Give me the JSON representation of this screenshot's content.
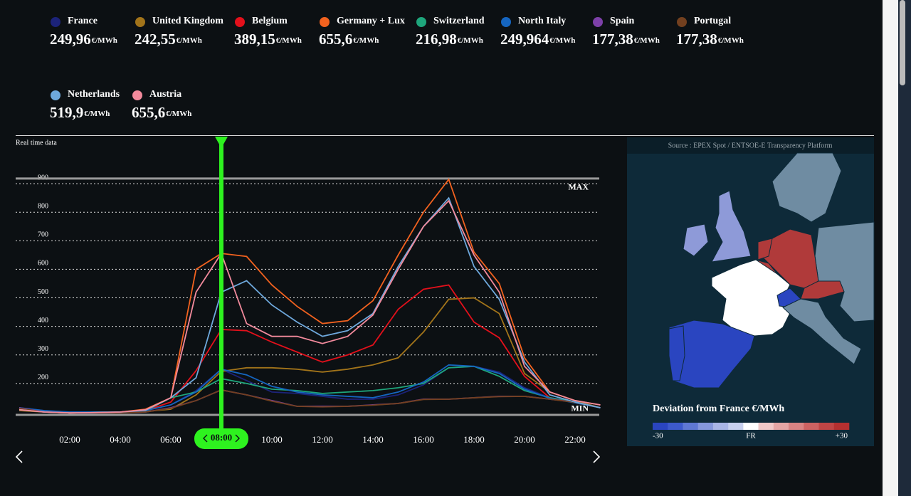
{
  "chart_data": {
    "type": "line",
    "subtitle": "Real time data",
    "unit": "€/MWh",
    "categories": [
      null,
      null,
      "02:00",
      null,
      "04:00",
      null,
      "06:00",
      null,
      "08:00",
      null,
      "10:00",
      null,
      "12:00",
      null,
      "14:00",
      null,
      "16:00",
      null,
      "18:00",
      null,
      "20:00",
      null,
      "22:00",
      null
    ],
    "selected": 8,
    "ylim": [
      80,
      1000
    ],
    "yticks": [
      200,
      300,
      400,
      500,
      600,
      700,
      800,
      900
    ],
    "grid": true,
    "annotations": [
      {
        "label": "MAX",
        "value": 918
      },
      {
        "label": "MIN",
        "value": 90
      }
    ],
    "series": [
      {
        "name": "France",
        "color": "#1c237a",
        "legend_value": "249,96",
        "values": [
          115,
          105,
          100,
          100,
          100,
          105,
          125,
          175,
          249.96,
          210,
          170,
          165,
          155,
          145,
          145,
          160,
          195,
          255,
          260,
          240,
          185,
          150,
          135,
          115
        ]
      },
      {
        "name": "United Kingdom",
        "color": "#a2741a",
        "legend_value": "242,55",
        "values": [
          105,
          100,
          97,
          98,
          100,
          102,
          110,
          160,
          242.55,
          255,
          255,
          250,
          240,
          250,
          265,
          290,
          380,
          495,
          500,
          445,
          235,
          170,
          140,
          115
        ]
      },
      {
        "name": "Belgium",
        "color": "#e3101b",
        "legend_value": "389,15",
        "values": [
          110,
          100,
          97,
          98,
          100,
          105,
          135,
          245,
          389.15,
          385,
          345,
          310,
          275,
          300,
          335,
          460,
          530,
          545,
          415,
          360,
          225,
          150,
          135,
          115
        ]
      },
      {
        "name": "Germany + Lux",
        "color": "#f2621f",
        "legend_value": "655,6",
        "values": [
          110,
          100,
          97,
          100,
          100,
          110,
          150,
          600,
          655.6,
          645,
          545,
          470,
          410,
          420,
          490,
          650,
          800,
          915,
          660,
          550,
          290,
          170,
          140,
          125
        ]
      },
      {
        "name": "Switzerland",
        "color": "#1ea67c",
        "legend_value": "216,98",
        "values": [
          110,
          102,
          98,
          100,
          100,
          104,
          150,
          170,
          216.98,
          200,
          180,
          175,
          165,
          170,
          175,
          185,
          200,
          255,
          260,
          225,
          175,
          150,
          135,
          115
        ]
      },
      {
        "name": "North Italy",
        "color": "#1565c0",
        "legend_value": "249,964",
        "values": [
          115,
          105,
          100,
          100,
          100,
          105,
          125,
          170,
          249.964,
          230,
          190,
          170,
          160,
          155,
          150,
          170,
          205,
          265,
          260,
          235,
          180,
          148,
          132,
          115
        ]
      },
      {
        "name": "Spain",
        "color": "#7d40a8",
        "legend_value": "177,38",
        "values": [
          115,
          100,
          97,
          97,
          97,
          100,
          115,
          140,
          177.38,
          160,
          140,
          120,
          120,
          120,
          125,
          130,
          145,
          145,
          150,
          155,
          155,
          145,
          135,
          115
        ]
      },
      {
        "name": "Portugal",
        "color": "#73401f",
        "legend_value": "177,38",
        "values": [
          113,
          100,
          97,
          97,
          97,
          100,
          113,
          140,
          177.38,
          160,
          138,
          120,
          118,
          120,
          124,
          130,
          144,
          145,
          150,
          154,
          155,
          145,
          134,
          115
        ]
      },
      {
        "name": "Netherlands",
        "color": "#6ea8dc",
        "legend_value": "519,9",
        "values": [
          108,
          100,
          97,
          98,
          100,
          106,
          150,
          220,
          519.9,
          560,
          475,
          415,
          365,
          385,
          445,
          610,
          750,
          850,
          610,
          495,
          275,
          160,
          135,
          115
        ]
      },
      {
        "name": "Austria",
        "color": "#f28a9c",
        "legend_value": "655,6",
        "values": [
          108,
          100,
          97,
          98,
          100,
          108,
          150,
          520,
          655.6,
          410,
          365,
          365,
          340,
          365,
          440,
          600,
          750,
          840,
          650,
          520,
          260,
          170,
          140,
          125
        ]
      }
    ]
  },
  "map": {
    "source": "Source : EPEX Spot / ENTSOE-E Transparency Platform",
    "legend_title": "Deviation from France €/MWh",
    "min_label": "-30",
    "center_label": "FR",
    "max_label": "+30",
    "scale_colors": [
      "#2a45c0",
      "#3d5acb",
      "#5f78d3",
      "#8597dc",
      "#a9b5e6",
      "#c8d0ef",
      "#ffffff",
      "#f0c8c8",
      "#e4a5a5",
      "#d88383",
      "#cc6262",
      "#c04545",
      "#b53030"
    ]
  }
}
